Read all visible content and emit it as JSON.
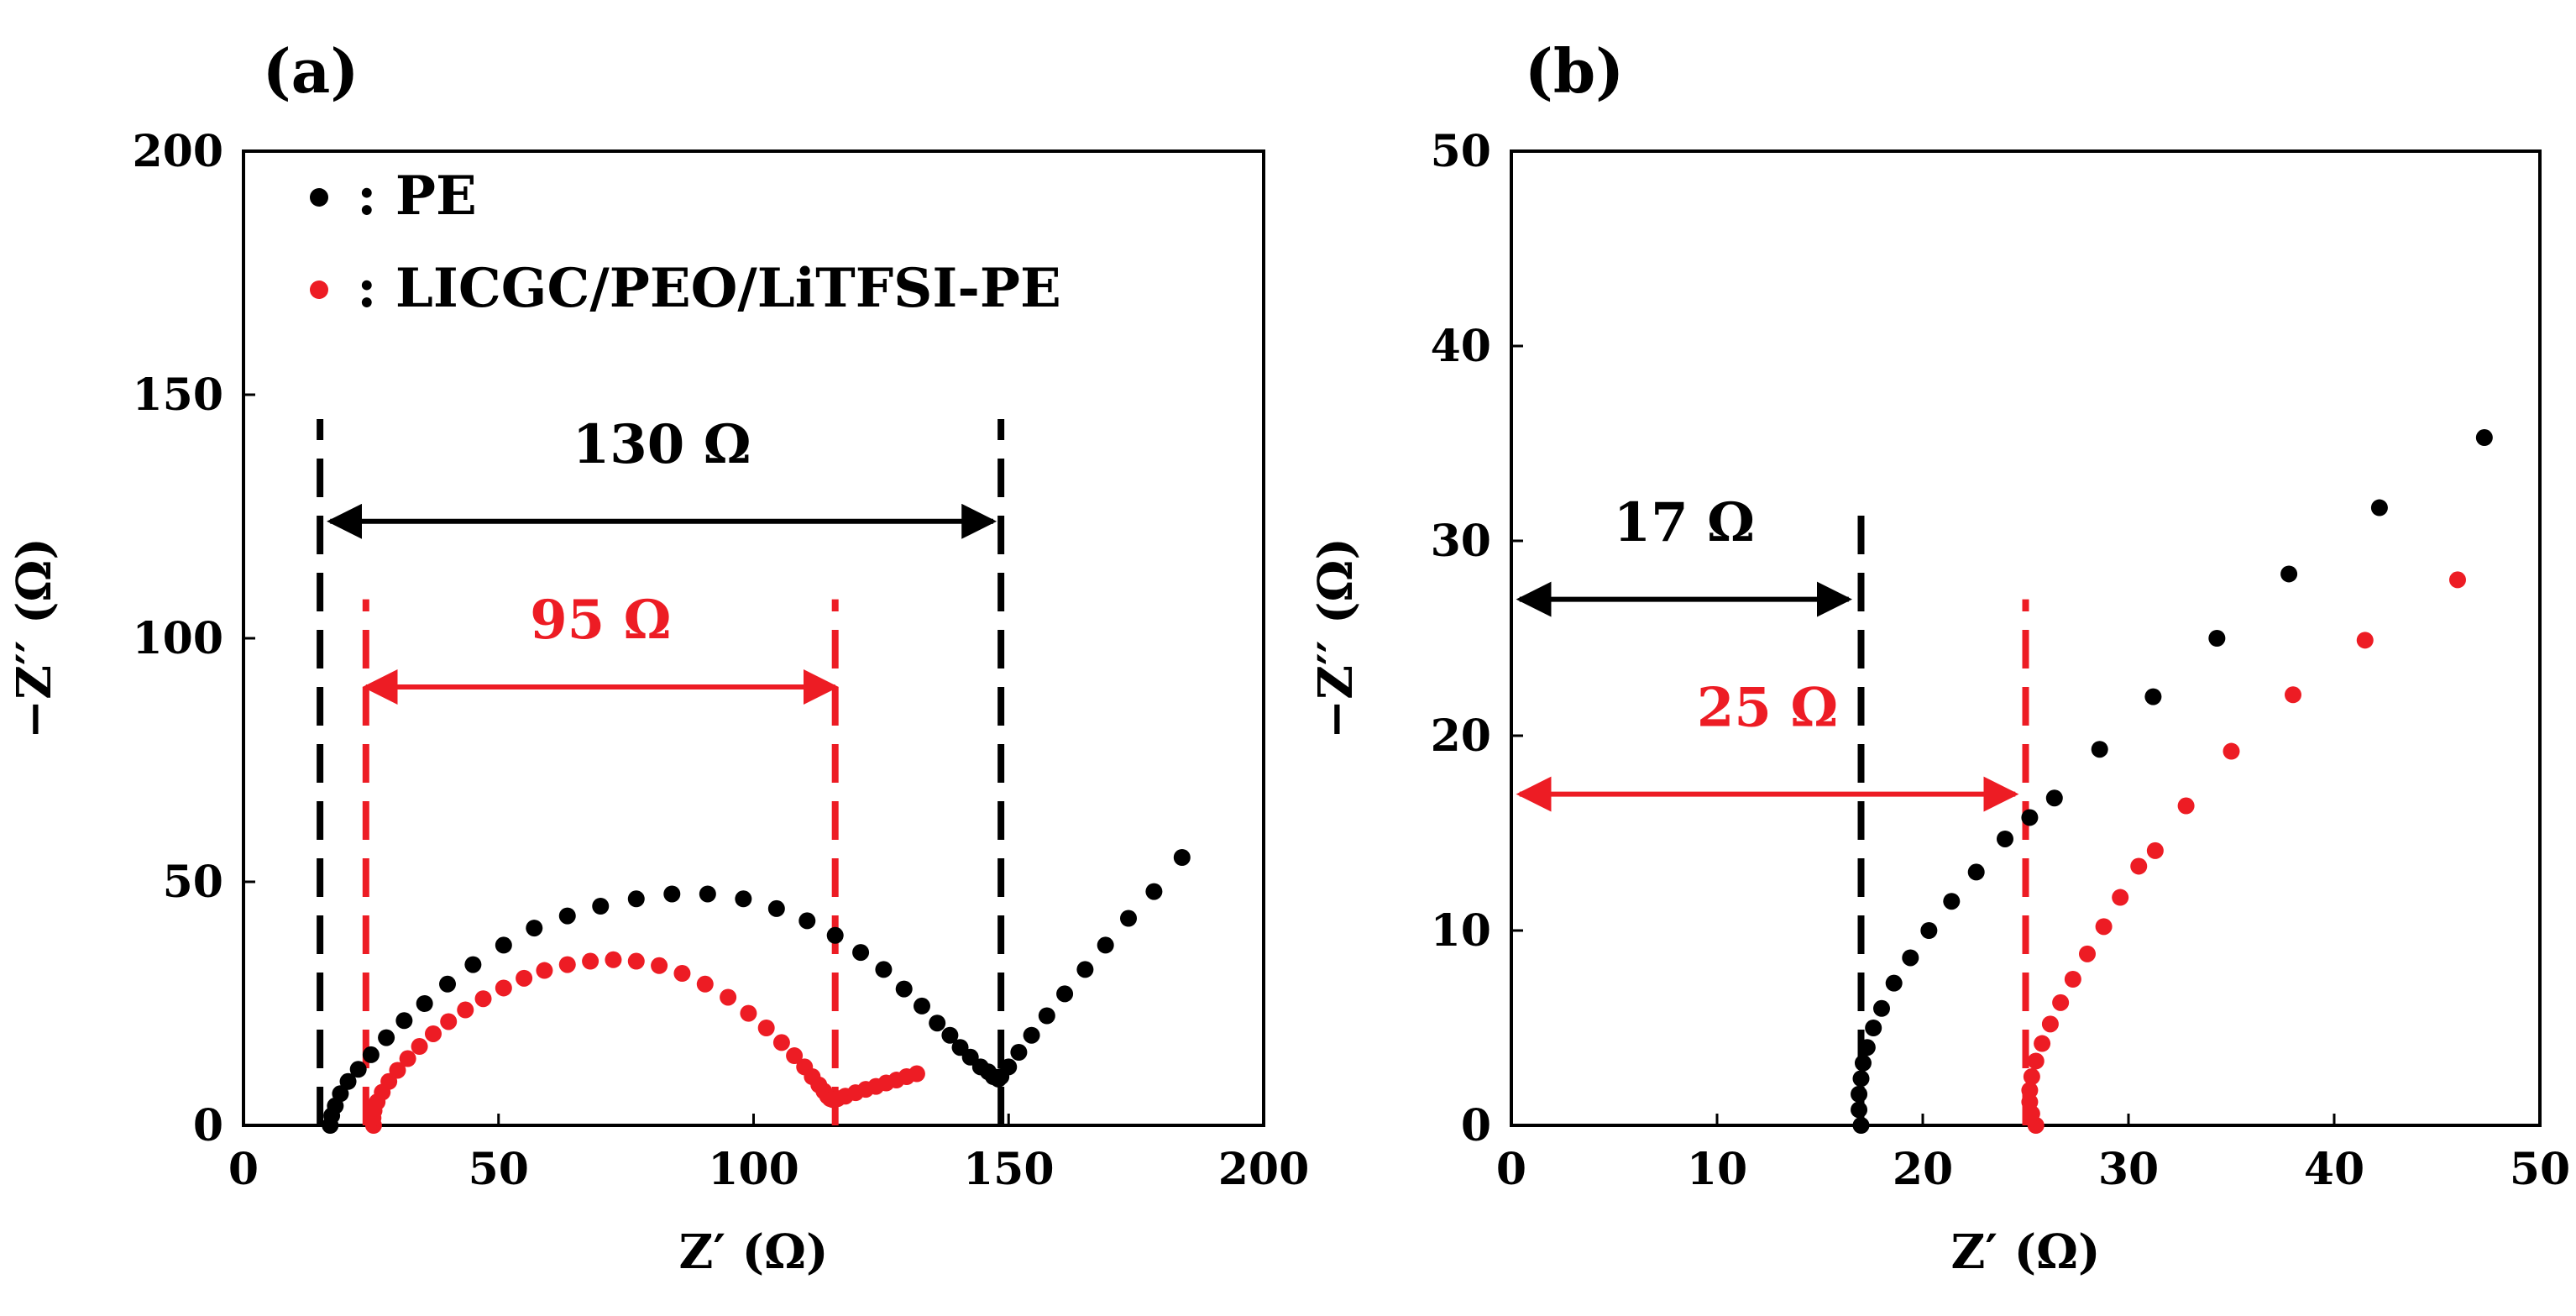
{
  "chart_data": [
    {
      "type": "scatter",
      "panel_label": "(a)",
      "xlabel": "Z′ (Ω)",
      "ylabel": "−Z′′ (Ω)",
      "xlim": [
        0,
        200
      ],
      "ylim": [
        0,
        200
      ],
      "xticks": [
        0,
        50,
        100,
        150,
        200
      ],
      "yticks": [
        0,
        50,
        100,
        150,
        200
      ],
      "grid": false,
      "legend_position": "top-left",
      "series": [
        {
          "name": "PE",
          "legend_label": ": PE",
          "color": "#000000",
          "x": [
            17,
            17.3,
            18,
            19,
            20.5,
            22.5,
            25,
            28,
            31.5,
            35.5,
            40,
            45,
            51,
            57,
            63.5,
            70,
            77,
            84,
            91,
            98,
            104.5,
            110.5,
            116,
            121,
            125.5,
            129.5,
            133,
            136,
            138.5,
            140.5,
            142.5,
            144.5,
            146,
            147,
            148,
            148.5,
            150,
            152,
            154.5,
            157.5,
            161,
            165,
            169,
            173.5,
            178.5,
            184
          ],
          "y": [
            0,
            2,
            4,
            6.5,
            9,
            11.5,
            14.5,
            18,
            21.5,
            25,
            29,
            33,
            37,
            40.5,
            43,
            45,
            46.5,
            47.5,
            47.5,
            46.5,
            44.5,
            42,
            39,
            35.5,
            32,
            28,
            24.5,
            21,
            18.5,
            16,
            14,
            12,
            11,
            10,
            9.5,
            10,
            12,
            15,
            18.5,
            22.5,
            27,
            32,
            37,
            42.5,
            48,
            55
          ]
        },
        {
          "name": "LICGC/PEO/LiTFSI-PE",
          "legend_label": ": LICGC/PEO/LiTFSI-PE",
          "color": "#ed1c24",
          "x": [
            25.5,
            25.4,
            25.6,
            26.2,
            27.2,
            28.5,
            30.2,
            32.2,
            34.5,
            37.2,
            40.2,
            43.5,
            47,
            51,
            55,
            59,
            63.5,
            68,
            72.5,
            77,
            81.5,
            86,
            90.5,
            95,
            99,
            102.5,
            105.5,
            108,
            110,
            111.5,
            112.8,
            113.8,
            114.5,
            115,
            115.5,
            116.5,
            118,
            120,
            122,
            124,
            126,
            128,
            130,
            132
          ],
          "y": [
            0,
            1.5,
            3,
            4.8,
            6.8,
            9,
            11.3,
            13.7,
            16.2,
            18.8,
            21.3,
            23.7,
            26,
            28.2,
            30.2,
            31.8,
            33,
            33.7,
            34,
            33.7,
            32.8,
            31.2,
            29,
            26.3,
            23,
            20,
            17,
            14.3,
            12,
            10,
            8.3,
            7,
            6,
            5.5,
            5.3,
            5.5,
            6,
            6.7,
            7.4,
            8,
            8.7,
            9.3,
            10,
            10.6
          ]
        }
      ],
      "annotations": [
        {
          "text": "130 Ω",
          "color": "#000000",
          "from": 17,
          "to": 147,
          "y": 124,
          "label_y": 136
        },
        {
          "text": "95 Ω",
          "color": "#ed1c24",
          "from": 24,
          "to": 116,
          "y": 90,
          "label_y": 100
        }
      ],
      "dashed_lines": [
        {
          "x": 15,
          "y_top": 145,
          "color": "#000000"
        },
        {
          "x": 148.5,
          "y_top": 145,
          "color": "#000000"
        },
        {
          "x": 24,
          "y_top": 108,
          "color": "#ed1c24"
        },
        {
          "x": 116,
          "y_top": 108,
          "color": "#ed1c24"
        }
      ]
    },
    {
      "type": "scatter",
      "panel_label": "(b)",
      "xlabel": "Z′ (Ω)",
      "ylabel": "−Z′′ (Ω)",
      "xlim": [
        0,
        50
      ],
      "ylim": [
        0,
        50
      ],
      "xticks": [
        0,
        10,
        20,
        30,
        40,
        50
      ],
      "yticks": [
        0,
        10,
        20,
        30,
        40,
        50
      ],
      "grid": false,
      "series": [
        {
          "name": "PE",
          "color": "#000000",
          "x": [
            17,
            16.9,
            16.9,
            17,
            17.1,
            17.3,
            17.6,
            18,
            18.6,
            19.4,
            20.3,
            21.4,
            22.6,
            24,
            25.2,
            26.4,
            28.6,
            31.2,
            34.3,
            37.8,
            42.2,
            47.3
          ],
          "y": [
            0,
            0.8,
            1.6,
            2.4,
            3.2,
            4,
            5,
            6,
            7.3,
            8.6,
            10,
            11.5,
            13,
            14.7,
            15.8,
            16.8,
            19.3,
            22,
            25,
            28.3,
            31.7,
            35.3
          ]
        },
        {
          "name": "LICGC/PEO/LiTFSI-PE",
          "color": "#ed1c24",
          "x": [
            25.5,
            25.3,
            25.2,
            25.2,
            25.3,
            25.5,
            25.8,
            26.2,
            26.7,
            27.3,
            28,
            28.8,
            29.6,
            30.5,
            31.3,
            32.8,
            35,
            38,
            41.5,
            46
          ],
          "y": [
            0,
            0.6,
            1.2,
            1.8,
            2.5,
            3.3,
            4.2,
            5.2,
            6.3,
            7.5,
            8.8,
            10.2,
            11.7,
            13.3,
            14.1,
            16.4,
            19.2,
            22.1,
            24.9,
            28
          ]
        }
      ],
      "annotations": [
        {
          "text": "17 Ω",
          "color": "#000000",
          "from": 0.4,
          "to": 16.4,
          "y": 27,
          "label_y": 30
        },
        {
          "text": "25 Ω",
          "color": "#ed1c24",
          "from": 0.4,
          "to": 24.5,
          "y": 17,
          "label_y": 20.5
        }
      ],
      "dashed_lines": [
        {
          "x": 17,
          "y_top": 31.5,
          "color": "#000000"
        },
        {
          "x": 25,
          "y_top": 27,
          "color": "#ed1c24"
        }
      ]
    }
  ]
}
